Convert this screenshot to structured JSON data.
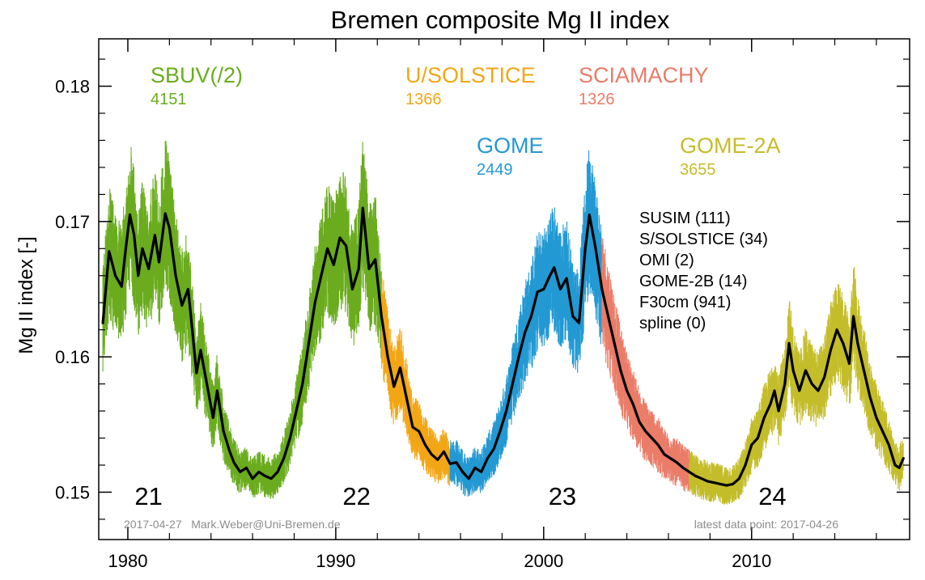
{
  "chart_data": {
    "type": "line",
    "title": "Bremen composite Mg II index",
    "ylabel": "Mg II index [-]",
    "xlabel": "",
    "xlim": [
      1978.6,
      2017.6
    ],
    "ylim": [
      0.1465,
      0.1835
    ],
    "x_ticks": [
      1980,
      1990,
      2000,
      2010
    ],
    "y_ticks": [
      0.15,
      0.16,
      0.17,
      0.18
    ],
    "y_tick_labels": [
      "0.15",
      "0.16",
      "0.17",
      "0.18"
    ],
    "grid": false,
    "instruments": [
      {
        "name": "SBUV(/2)",
        "count": "4151",
        "color": "#6aac1e"
      },
      {
        "name": "U/SOLSTICE",
        "count": "1366",
        "color": "#f2a616"
      },
      {
        "name": "SCIAMACHY",
        "count": "1326",
        "color": "#ea7c68"
      },
      {
        "name": "GOME",
        "count": "2449",
        "color": "#2299d3"
      },
      {
        "name": "GOME-2A",
        "count": "3655",
        "color": "#c4bd2a"
      }
    ],
    "other_sources": [
      "SUSIM (111)",
      "S/SOLSTICE (34)",
      "OMI (2)",
      "GOME-2B (14)",
      "F30cm (941)",
      "spline (0)"
    ],
    "cycle_labels": [
      {
        "label": "21",
        "x": 1981.0
      },
      {
        "label": "22",
        "x": 1991.0
      },
      {
        "label": "23",
        "x": 2000.9
      },
      {
        "label": "24",
        "x": 2011.0
      }
    ],
    "footer_left": "2017-04-27   Mark.Weber@Uni-Bremen.de",
    "footer_right": "latest data point: 2017-04-26",
    "segments": [
      {
        "instrument": "SBUV(/2)",
        "color": "#6aac1e",
        "x_start": 1978.8,
        "x_end": 1992.2
      },
      {
        "instrument": "U/SOLSTICE",
        "color": "#f2a616",
        "x_start": 1992.2,
        "x_end": 1995.5
      },
      {
        "instrument": "GOME",
        "color": "#2299d3",
        "x_start": 1995.5,
        "x_end": 2002.8
      },
      {
        "instrument": "SCIAMACHY",
        "color": "#ea7c68",
        "x_start": 2002.8,
        "x_end": 2007.0
      },
      {
        "instrument": "GOME-2A",
        "color": "#c4bd2a",
        "x_start": 2007.0,
        "x_end": 2017.3
      }
    ],
    "series": [
      {
        "name": "smoothed",
        "color": "#000000",
        "points": [
          [
            1978.8,
            0.1625
          ],
          [
            1979.1,
            0.1678
          ],
          [
            1979.4,
            0.166
          ],
          [
            1979.7,
            0.1652
          ],
          [
            1979.9,
            0.168
          ],
          [
            1980.1,
            0.1705
          ],
          [
            1980.3,
            0.169
          ],
          [
            1980.5,
            0.166
          ],
          [
            1980.7,
            0.168
          ],
          [
            1981.0,
            0.1665
          ],
          [
            1981.3,
            0.169
          ],
          [
            1981.5,
            0.167
          ],
          [
            1981.8,
            0.1706
          ],
          [
            1982.0,
            0.1695
          ],
          [
            1982.3,
            0.166
          ],
          [
            1982.6,
            0.1638
          ],
          [
            1982.9,
            0.165
          ],
          [
            1983.1,
            0.162
          ],
          [
            1983.3,
            0.1588
          ],
          [
            1983.5,
            0.1605
          ],
          [
            1983.8,
            0.158
          ],
          [
            1984.1,
            0.1555
          ],
          [
            1984.3,
            0.1575
          ],
          [
            1984.6,
            0.1545
          ],
          [
            1984.9,
            0.153
          ],
          [
            1985.1,
            0.1522
          ],
          [
            1985.4,
            0.1515
          ],
          [
            1985.7,
            0.1518
          ],
          [
            1986.0,
            0.151
          ],
          [
            1986.3,
            0.1515
          ],
          [
            1986.6,
            0.1512
          ],
          [
            1986.9,
            0.151
          ],
          [
            1987.2,
            0.1515
          ],
          [
            1987.5,
            0.1525
          ],
          [
            1987.8,
            0.154
          ],
          [
            1988.1,
            0.156
          ],
          [
            1988.4,
            0.158
          ],
          [
            1988.7,
            0.161
          ],
          [
            1989.0,
            0.164
          ],
          [
            1989.3,
            0.166
          ],
          [
            1989.6,
            0.168
          ],
          [
            1989.9,
            0.1668
          ],
          [
            1990.2,
            0.1688
          ],
          [
            1990.5,
            0.1682
          ],
          [
            1990.8,
            0.165
          ],
          [
            1991.1,
            0.1665
          ],
          [
            1991.3,
            0.171
          ],
          [
            1991.6,
            0.1665
          ],
          [
            1991.9,
            0.1672
          ],
          [
            1992.2,
            0.163
          ],
          [
            1992.5,
            0.16
          ],
          [
            1992.8,
            0.1578
          ],
          [
            1993.1,
            0.1592
          ],
          [
            1993.4,
            0.157
          ],
          [
            1993.7,
            0.1548
          ],
          [
            1994.0,
            0.1545
          ],
          [
            1994.3,
            0.1535
          ],
          [
            1994.6,
            0.1528
          ],
          [
            1994.9,
            0.1524
          ],
          [
            1995.2,
            0.153
          ],
          [
            1995.5,
            0.1521
          ],
          [
            1995.8,
            0.1522
          ],
          [
            1996.1,
            0.1515
          ],
          [
            1996.4,
            0.151
          ],
          [
            1996.7,
            0.1518
          ],
          [
            1997.0,
            0.1515
          ],
          [
            1997.3,
            0.1525
          ],
          [
            1997.6,
            0.1532
          ],
          [
            1997.9,
            0.1545
          ],
          [
            1998.2,
            0.156
          ],
          [
            1998.5,
            0.158
          ],
          [
            1998.8,
            0.16
          ],
          [
            1999.1,
            0.1618
          ],
          [
            1999.4,
            0.163
          ],
          [
            1999.7,
            0.1648
          ],
          [
            2000.0,
            0.165
          ],
          [
            2000.3,
            0.166
          ],
          [
            2000.5,
            0.1666
          ],
          [
            2000.8,
            0.165
          ],
          [
            2001.1,
            0.1658
          ],
          [
            2001.4,
            0.163
          ],
          [
            2001.7,
            0.1625
          ],
          [
            2002.0,
            0.168
          ],
          [
            2002.2,
            0.1705
          ],
          [
            2002.5,
            0.168
          ],
          [
            2002.8,
            0.165
          ],
          [
            2003.1,
            0.163
          ],
          [
            2003.4,
            0.161
          ],
          [
            2003.7,
            0.159
          ],
          [
            2004.0,
            0.1575
          ],
          [
            2004.3,
            0.1565
          ],
          [
            2004.6,
            0.1552
          ],
          [
            2004.9,
            0.1545
          ],
          [
            2005.2,
            0.154
          ],
          [
            2005.5,
            0.1535
          ],
          [
            2005.8,
            0.1528
          ],
          [
            2006.1,
            0.1525
          ],
          [
            2006.4,
            0.1522
          ],
          [
            2006.7,
            0.1518
          ],
          [
            2007.0,
            0.1515
          ],
          [
            2007.3,
            0.1512
          ],
          [
            2007.6,
            0.151
          ],
          [
            2007.9,
            0.1508
          ],
          [
            2008.2,
            0.1507
          ],
          [
            2008.5,
            0.1506
          ],
          [
            2008.8,
            0.1505
          ],
          [
            2009.1,
            0.1506
          ],
          [
            2009.4,
            0.151
          ],
          [
            2009.7,
            0.152
          ],
          [
            2010.0,
            0.1535
          ],
          [
            2010.3,
            0.154
          ],
          [
            2010.6,
            0.1555
          ],
          [
            2010.9,
            0.1565
          ],
          [
            2011.1,
            0.1575
          ],
          [
            2011.3,
            0.156
          ],
          [
            2011.6,
            0.158
          ],
          [
            2011.8,
            0.161
          ],
          [
            2012.0,
            0.159
          ],
          [
            2012.3,
            0.1575
          ],
          [
            2012.6,
            0.159
          ],
          [
            2012.9,
            0.158
          ],
          [
            2013.2,
            0.1575
          ],
          [
            2013.5,
            0.1585
          ],
          [
            2013.8,
            0.1605
          ],
          [
            2014.1,
            0.162
          ],
          [
            2014.4,
            0.161
          ],
          [
            2014.7,
            0.1595
          ],
          [
            2014.9,
            0.163
          ],
          [
            2015.1,
            0.161
          ],
          [
            2015.4,
            0.159
          ],
          [
            2015.7,
            0.157
          ],
          [
            2016.0,
            0.1555
          ],
          [
            2016.3,
            0.1545
          ],
          [
            2016.6,
            0.1535
          ],
          [
            2016.9,
            0.152
          ],
          [
            2017.1,
            0.1518
          ],
          [
            2017.3,
            0.1525
          ]
        ]
      }
    ]
  }
}
